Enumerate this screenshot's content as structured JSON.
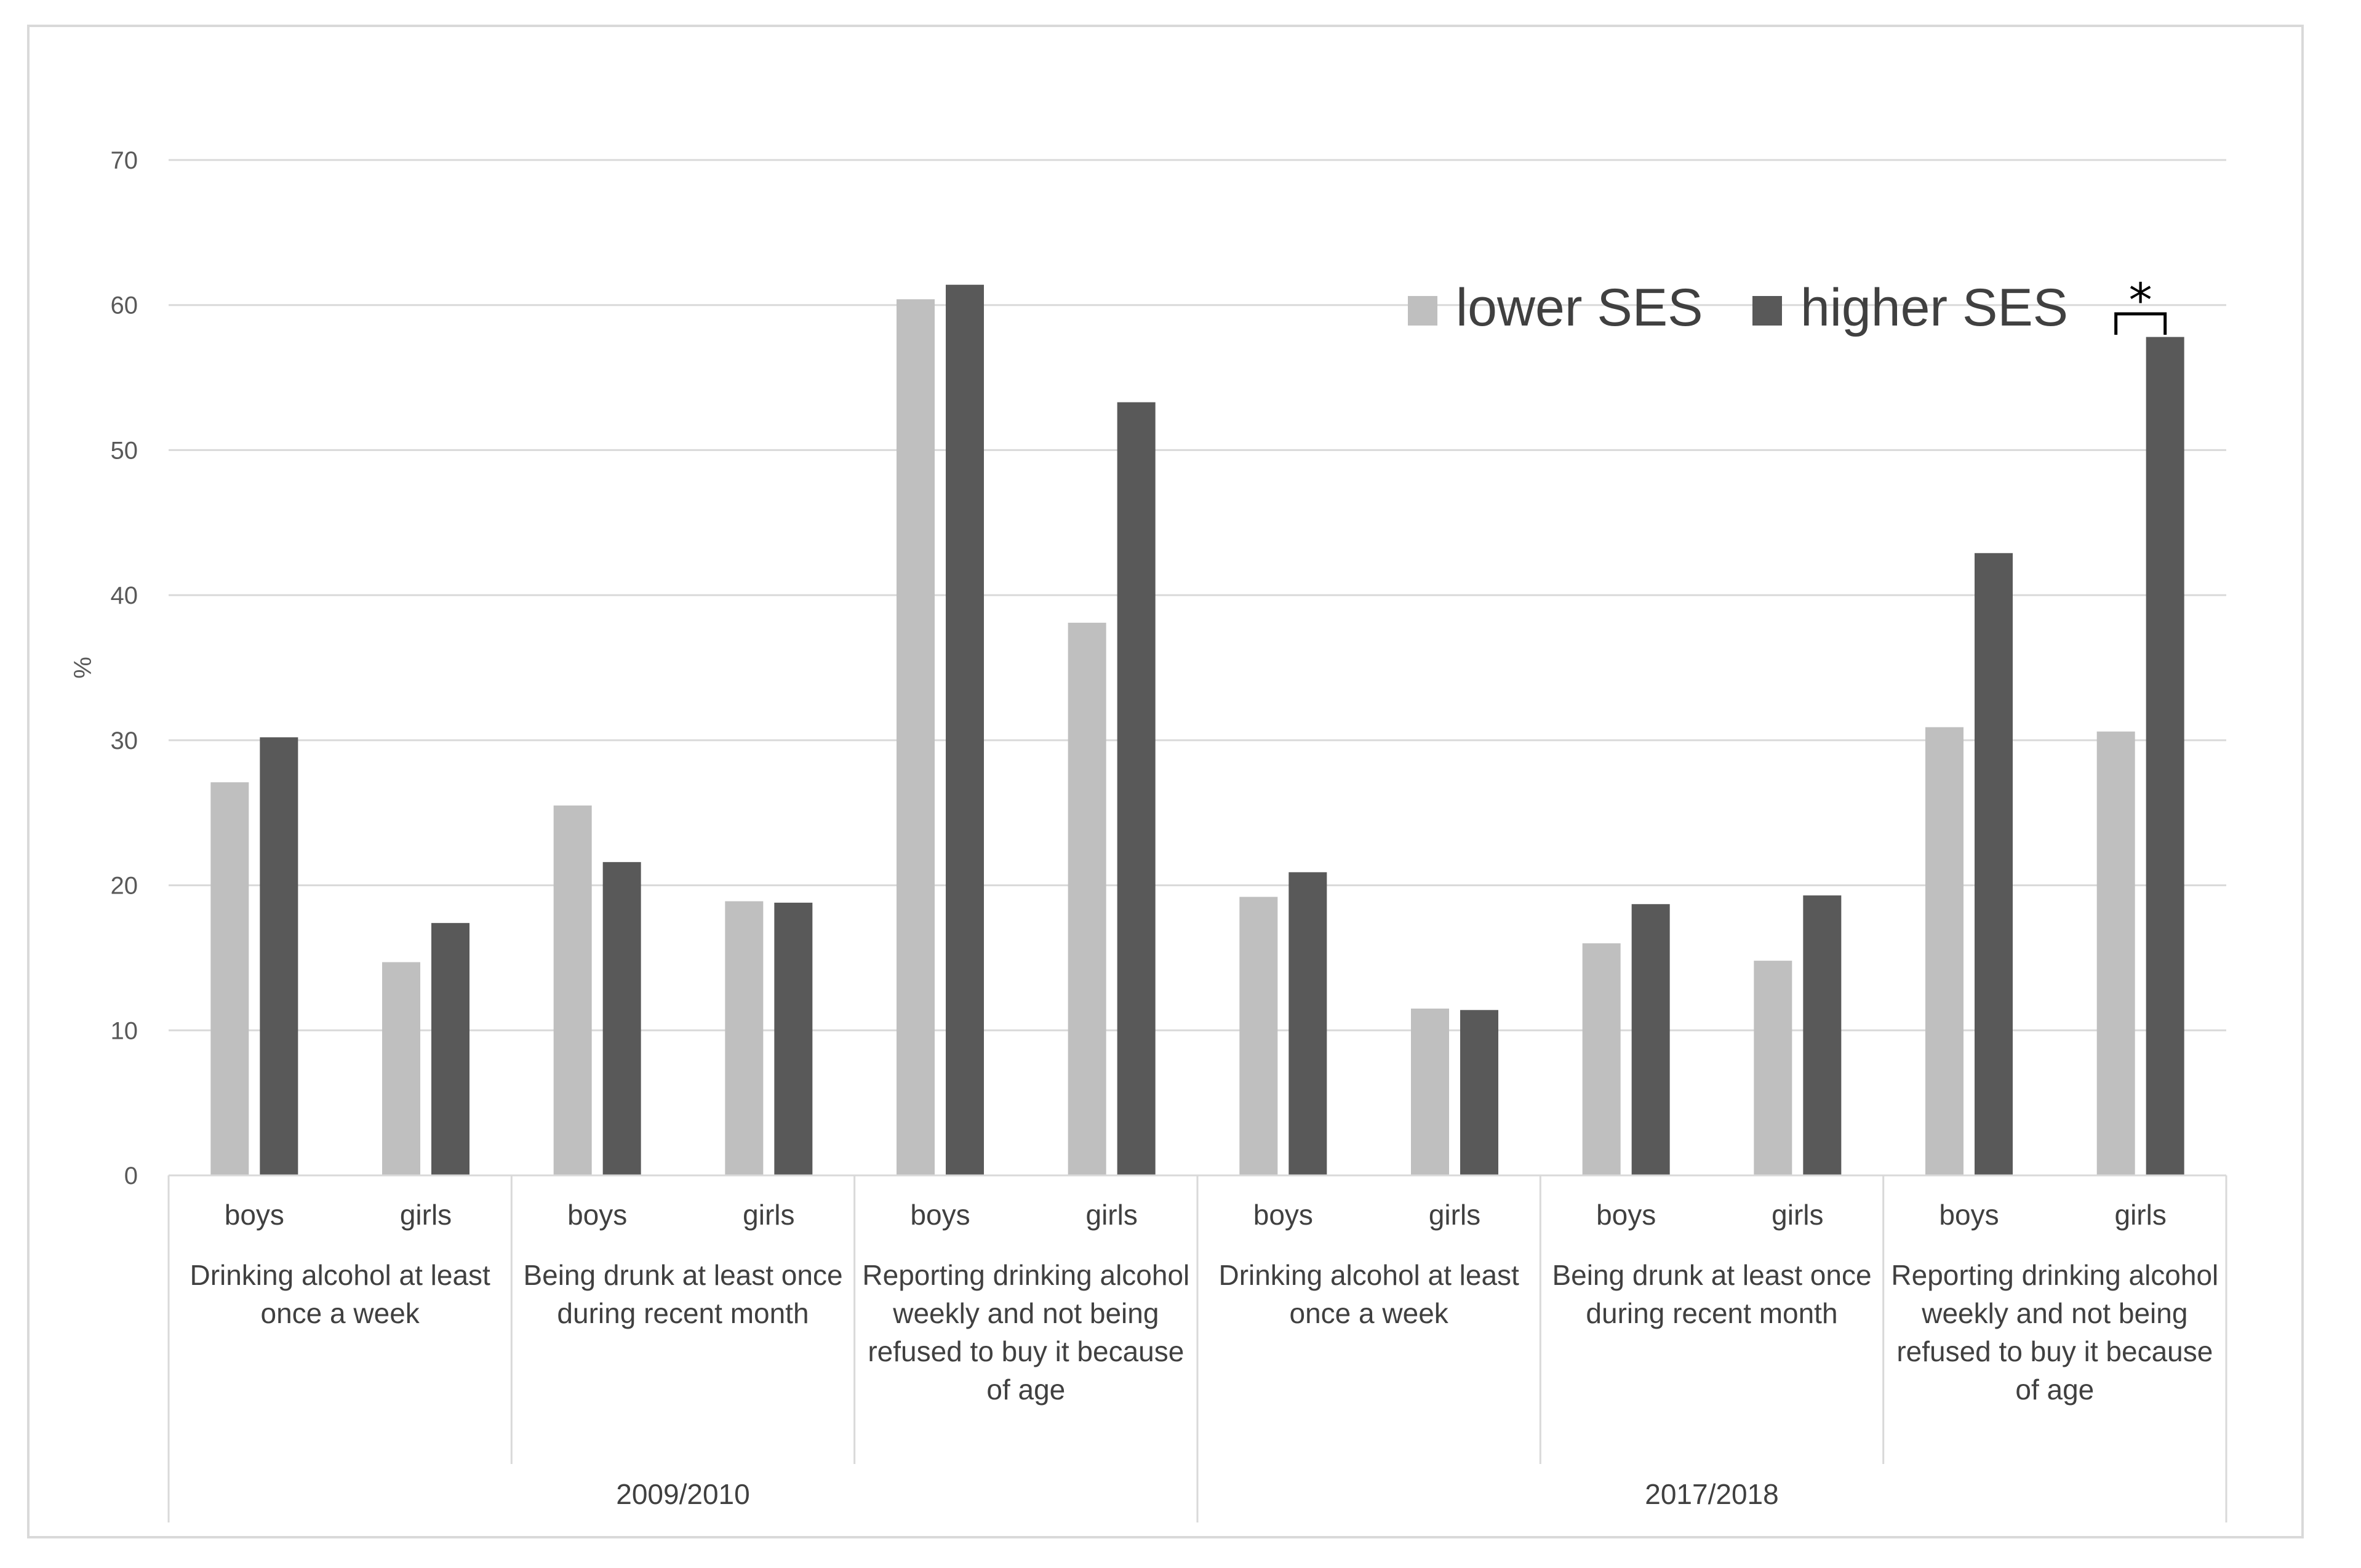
{
  "chart_data": {
    "type": "bar",
    "title": "",
    "xlabel": "",
    "ylabel": "%",
    "ylim": [
      0,
      70
    ],
    "yticks": [
      0,
      10,
      20,
      30,
      40,
      50,
      60,
      70
    ],
    "grid": true,
    "legend_position": "top-right",
    "periods": [
      {
        "label": "2009/2010",
        "indicators": [
          {
            "label_lines": [
              "Drinking alcohol at least",
              "once a week"
            ]
          },
          {
            "label_lines": [
              "Being drunk at least once",
              "during recent month"
            ]
          },
          {
            "label_lines": [
              "Reporting drinking alcohol",
              "weekly and not being",
              "refused to buy it because",
              "of age"
            ]
          }
        ]
      },
      {
        "label": "2017/2018",
        "indicators": [
          {
            "label_lines": [
              "Drinking alcohol at least",
              "once a week"
            ]
          },
          {
            "label_lines": [
              "Being drunk at least once",
              "during recent month"
            ]
          },
          {
            "label_lines": [
              "Reporting drinking alcohol",
              "weekly and not being",
              "refused to buy it because",
              "of age"
            ]
          }
        ]
      }
    ],
    "categories": [
      "boys",
      "girls",
      "boys",
      "girls",
      "boys",
      "girls",
      "boys",
      "girls",
      "boys",
      "girls",
      "boys",
      "girls"
    ],
    "series": [
      {
        "name": "lower SES",
        "color": "#bfbfbf",
        "values": [
          27.1,
          14.7,
          25.5,
          18.9,
          60.4,
          38.1,
          19.2,
          11.5,
          16.0,
          14.8,
          30.9,
          30.6
        ]
      },
      {
        "name": "higher SES",
        "color": "#595959",
        "values": [
          30.2,
          17.4,
          21.6,
          18.8,
          61.4,
          53.3,
          20.9,
          11.4,
          18.7,
          19.3,
          42.9,
          57.8
        ]
      }
    ],
    "annotations": [
      {
        "text": "*",
        "category_index": 11,
        "meaning": "significant difference"
      }
    ]
  }
}
